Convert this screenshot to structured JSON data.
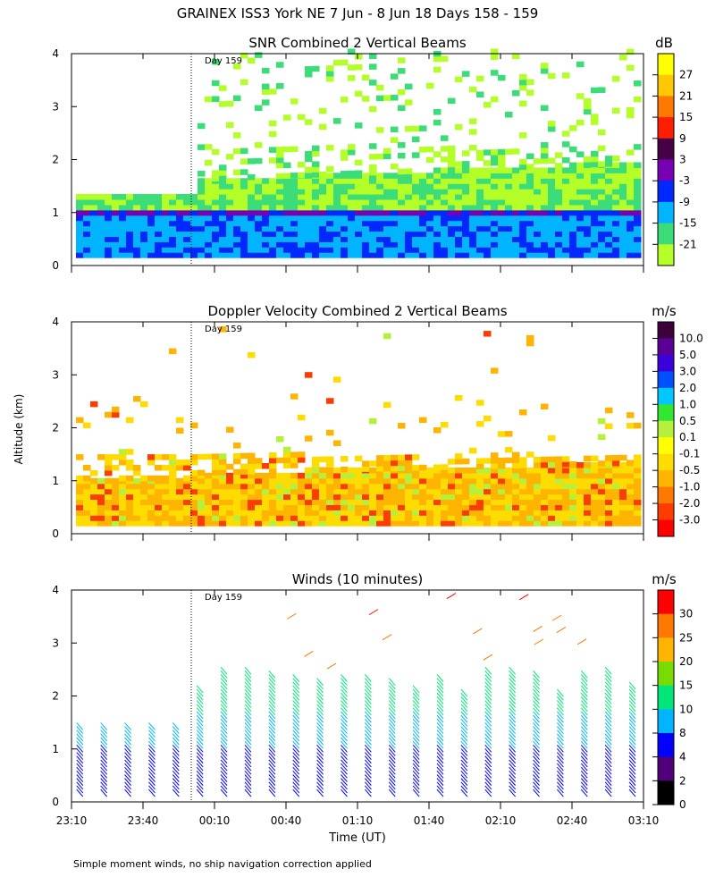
{
  "header": {
    "title": "GRAINEX ISS3 York NE   7 Jun -  8 Jun 18 Days 158 - 159"
  },
  "shared_axes": {
    "ylabel": "Altitude (km)",
    "xlabel": "Time (UT)",
    "xticks": [
      "23:10",
      "23:40",
      "00:10",
      "00:40",
      "01:10",
      "01:40",
      "02:10",
      "02:40",
      "03:10"
    ],
    "day_marker": "Day 159"
  },
  "footer": {
    "note": "Simple moment winds, no ship navigation correction applied"
  },
  "chart_data": [
    {
      "type": "heatmap",
      "title": "SNR Combined 2 Vertical Beams",
      "xlabel": "Time (UT)",
      "ylabel": "Altitude (km)",
      "ylim": [
        0,
        4
      ],
      "yticks": [
        "0",
        "1",
        "2",
        "3",
        "4"
      ],
      "colorbar": {
        "unit": "dB",
        "labels": [
          "27",
          "21",
          "15",
          "9",
          "3",
          "-3",
          "-9",
          "-15",
          "-21"
        ],
        "colors": [
          "#ffff00",
          "#ffc800",
          "#ff7800",
          "#ff1e00",
          "#460046",
          "#7800b4",
          "#0028ff",
          "#00b4ff",
          "#3cdc78",
          "#b4ff28"
        ]
      }
    },
    {
      "type": "heatmap",
      "title": "Doppler Velocity Combined 2 Vertical Beams",
      "xlabel": "Time (UT)",
      "ylabel": "Altitude (km)",
      "ylim": [
        0,
        4
      ],
      "yticks": [
        "0",
        "1",
        "2",
        "3",
        "4"
      ],
      "colorbar": {
        "unit": "m/s",
        "labels": [
          "10.0",
          "5.0",
          "3.0",
          "2.0",
          "1.0",
          "0.5",
          "0.1",
          "-0.1",
          "-0.5",
          "-1.0",
          "-2.0",
          "-3.0"
        ],
        "colors": [
          "#3c003c",
          "#5a0096",
          "#3c00dc",
          "#0050ff",
          "#00c8ff",
          "#32e632",
          "#b4f03c",
          "#ffff00",
          "#ffdc00",
          "#ffb400",
          "#ff7800",
          "#ff3c00",
          "#ff0000"
        ]
      }
    },
    {
      "type": "scatter",
      "title": "Winds (10 minutes)",
      "xlabel": "Time (UT)",
      "ylabel": "Altitude (km)",
      "ylim": [
        0,
        4
      ],
      "yticks": [
        "0",
        "1",
        "2",
        "3",
        "4"
      ],
      "colorbar": {
        "unit": "m/s",
        "labels": [
          "30",
          "25",
          "20",
          "15",
          "10",
          "8",
          "4",
          "2",
          "0"
        ],
        "colors": [
          "#ff0000",
          "#ff7800",
          "#ffb400",
          "#78dc00",
          "#00e678",
          "#00b4ff",
          "#0000ff",
          "#500078",
          "#000000"
        ]
      }
    }
  ]
}
